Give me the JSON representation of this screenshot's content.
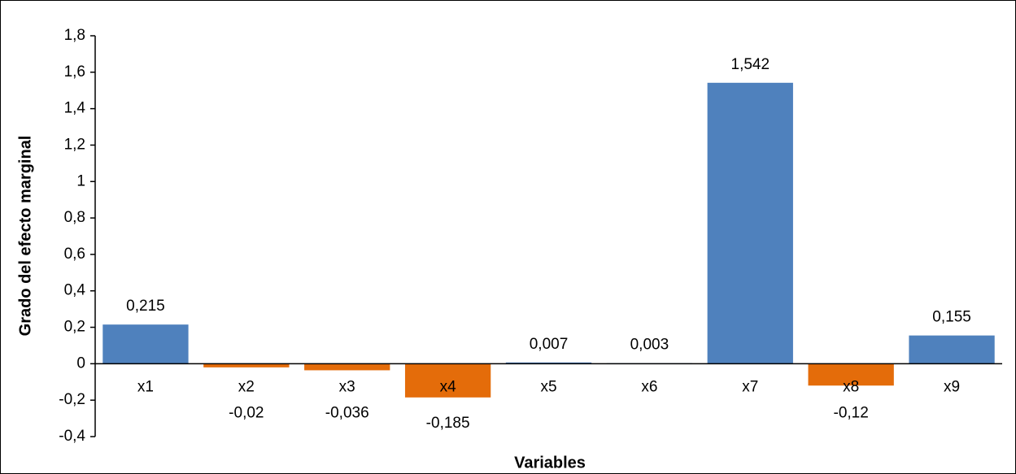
{
  "chart_data": {
    "type": "bar",
    "x_label": "Variables",
    "y_label": "Grado del efecto marginal",
    "categories": [
      "x1",
      "x2",
      "x3",
      "x4",
      "x5",
      "x6",
      "x7",
      "x8",
      "x9"
    ],
    "values": [
      0.215,
      -0.02,
      -0.036,
      -0.185,
      0.007,
      0.003,
      1.542,
      -0.12,
      0.155
    ],
    "value_labels": [
      "0,215",
      "-0,02",
      "-0,036",
      "-0,185",
      "0,007",
      "0,003",
      "1,542",
      "-0,12",
      "0,155"
    ],
    "colors": [
      "#4f81bd",
      "#e46c0a",
      "#e46c0a",
      "#e46c0a",
      "#4f81bd",
      "#4f81bd",
      "#4f81bd",
      "#e46c0a",
      "#4f81bd"
    ],
    "ylim": [
      -0.4,
      1.8
    ],
    "yticks": [
      {
        "value": -0.4,
        "label": "-0,4"
      },
      {
        "value": -0.2,
        "label": "-0,2"
      },
      0,
      {
        "value": 0.2,
        "label": "0,2"
      },
      {
        "value": 0.4,
        "label": "0,4"
      },
      {
        "value": 0.6,
        "label": "0,6"
      },
      {
        "value": 0.8,
        "label": "0,8"
      },
      1,
      {
        "value": 1.2,
        "label": "1,2"
      },
      {
        "value": 1.4,
        "label": "1,4"
      },
      {
        "value": 1.6,
        "label": "1,6"
      },
      {
        "value": 1.8,
        "label": "1,8"
      }
    ],
    "grid": false
  }
}
